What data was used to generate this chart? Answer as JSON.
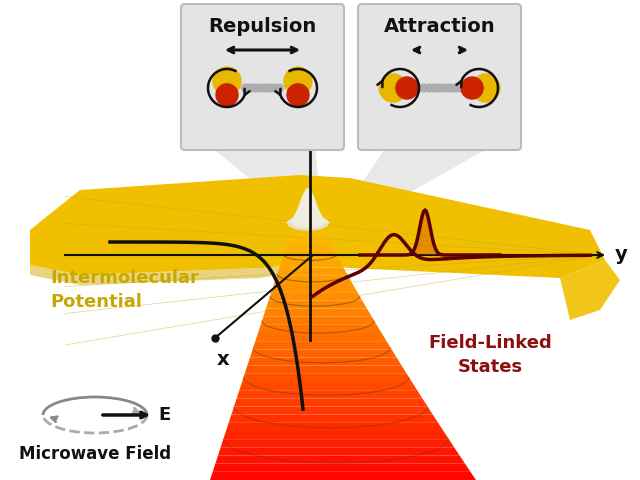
{
  "bg_color": "#ffffff",
  "repulsion_title": "Repulsion",
  "attraction_title": "Attraction",
  "intermolecular_label": "Intermolecular\nPotential",
  "field_linked_label": "Field-Linked\nStates",
  "microwave_label": "Microwave Field",
  "x_label": "x",
  "y_label": "y",
  "E_label": "E",
  "molecule_yellow": "#e8b800",
  "molecule_red": "#cc2200",
  "chain_color": "#aaaaaa",
  "box_bg": "#e0e0e0",
  "label_color_yellow": "#c8a800",
  "label_color_dark": "#8b1010",
  "surface_yellow": "#f0c000",
  "surface_orange": "#e06000",
  "surface_red": "#aa1500"
}
